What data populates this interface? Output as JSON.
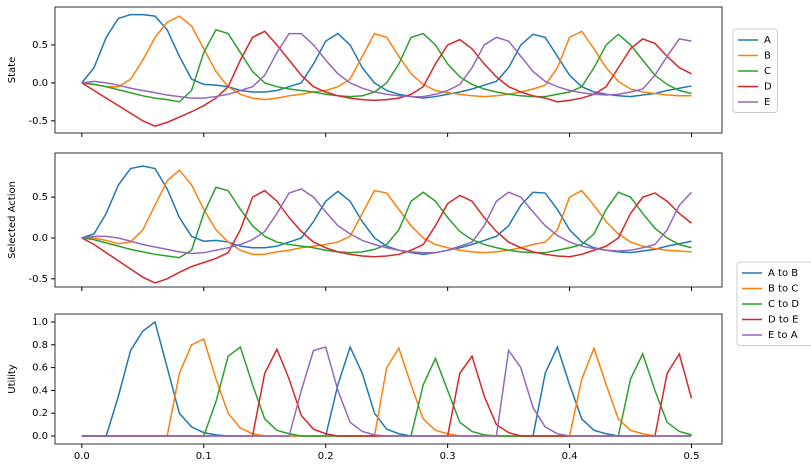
{
  "chart_data": [
    {
      "type": "line",
      "ylabel": "State",
      "x": [
        0,
        0.01,
        0.02,
        0.03,
        0.04,
        0.05,
        0.06,
        0.07,
        0.08,
        0.09,
        0.1,
        0.11,
        0.12,
        0.13,
        0.14,
        0.15,
        0.16,
        0.17,
        0.18,
        0.19,
        0.2,
        0.21,
        0.22,
        0.23,
        0.24,
        0.25,
        0.26,
        0.27,
        0.28,
        0.29,
        0.3,
        0.31,
        0.32,
        0.33,
        0.34,
        0.35,
        0.36,
        0.37,
        0.38,
        0.39,
        0.4,
        0.41,
        0.42,
        0.43,
        0.44,
        0.45,
        0.46,
        0.47,
        0.48,
        0.49,
        0.5
      ],
      "xlim": [
        -0.022,
        0.525
      ],
      "ylim": [
        -0.66,
        1.0
      ],
      "yticks": [
        0.5,
        {
          "value": 0,
          "label": "0.0"
        },
        -0.5
      ],
      "legend": "right",
      "series": [
        {
          "name": "A",
          "color": "#1f77b4",
          "values": [
            0,
            0.2,
            0.6,
            0.85,
            0.9,
            0.9,
            0.88,
            0.7,
            0.35,
            0.05,
            -0.02,
            -0.03,
            -0.05,
            -0.1,
            -0.12,
            -0.12,
            -0.1,
            -0.05,
            0.0,
            0.25,
            0.55,
            0.65,
            0.5,
            0.2,
            0.0,
            -0.1,
            -0.15,
            -0.18,
            -0.2,
            -0.18,
            -0.15,
            -0.12,
            -0.08,
            -0.03,
            0.02,
            0.2,
            0.5,
            0.64,
            0.6,
            0.35,
            0.1,
            -0.05,
            -0.12,
            -0.15,
            -0.17,
            -0.18,
            -0.16,
            -0.14,
            -0.1,
            -0.07,
            -0.04
          ]
        },
        {
          "name": "B",
          "color": "#ff7f0e",
          "values": [
            0,
            -0.02,
            -0.05,
            -0.05,
            0.05,
            0.3,
            0.6,
            0.8,
            0.88,
            0.75,
            0.45,
            0.15,
            -0.05,
            -0.15,
            -0.2,
            -0.22,
            -0.2,
            -0.17,
            -0.15,
            -0.12,
            -0.1,
            -0.05,
            0.05,
            0.35,
            0.65,
            0.6,
            0.35,
            0.12,
            -0.02,
            -0.1,
            -0.13,
            -0.15,
            -0.17,
            -0.18,
            -0.17,
            -0.15,
            -0.12,
            -0.08,
            -0.03,
            0.2,
            0.6,
            0.68,
            0.45,
            0.2,
            0.02,
            -0.08,
            -0.12,
            -0.14,
            -0.16,
            -0.17,
            -0.17
          ]
        },
        {
          "name": "C",
          "color": "#2ca02c",
          "values": [
            0,
            -0.02,
            -0.05,
            -0.09,
            -0.13,
            -0.17,
            -0.2,
            -0.22,
            -0.25,
            -0.1,
            0.4,
            0.7,
            0.65,
            0.4,
            0.15,
            0.0,
            -0.05,
            -0.08,
            -0.1,
            -0.12,
            -0.15,
            -0.17,
            -0.18,
            -0.17,
            -0.12,
            0.0,
            0.25,
            0.6,
            0.65,
            0.5,
            0.25,
            0.08,
            -0.02,
            -0.08,
            -0.12,
            -0.15,
            -0.17,
            -0.18,
            -0.18,
            -0.15,
            -0.12,
            -0.05,
            0.2,
            0.5,
            0.64,
            0.5,
            0.3,
            0.1,
            -0.02,
            -0.1,
            -0.14
          ]
        },
        {
          "name": "D",
          "color": "#d62728",
          "values": [
            0,
            -0.1,
            -0.2,
            -0.3,
            -0.4,
            -0.5,
            -0.57,
            -0.52,
            -0.45,
            -0.38,
            -0.3,
            -0.2,
            -0.05,
            0.3,
            0.6,
            0.68,
            0.5,
            0.3,
            0.1,
            -0.05,
            -0.12,
            -0.17,
            -0.2,
            -0.22,
            -0.23,
            -0.22,
            -0.2,
            -0.15,
            -0.05,
            0.25,
            0.5,
            0.57,
            0.45,
            0.25,
            0.08,
            -0.05,
            -0.12,
            -0.17,
            -0.2,
            -0.25,
            -0.23,
            -0.2,
            -0.15,
            -0.05,
            0.2,
            0.45,
            0.58,
            0.52,
            0.35,
            0.2,
            0.12
          ]
        },
        {
          "name": "E",
          "color": "#9467bd",
          "values": [
            0,
            0.02,
            0.0,
            -0.03,
            -0.07,
            -0.1,
            -0.13,
            -0.16,
            -0.18,
            -0.2,
            -0.2,
            -0.18,
            -0.15,
            -0.1,
            -0.05,
            0.1,
            0.4,
            0.65,
            0.65,
            0.5,
            0.3,
            0.12,
            0.0,
            -0.07,
            -0.12,
            -0.15,
            -0.17,
            -0.18,
            -0.18,
            -0.15,
            -0.1,
            -0.02,
            0.2,
            0.5,
            0.6,
            0.55,
            0.35,
            0.15,
            0.02,
            -0.05,
            -0.1,
            -0.13,
            -0.15,
            -0.16,
            -0.15,
            -0.12,
            -0.08,
            0.1,
            0.35,
            0.58,
            0.55
          ]
        }
      ]
    },
    {
      "type": "line",
      "ylabel": "Selected Action",
      "x": [
        0,
        0.01,
        0.02,
        0.03,
        0.04,
        0.05,
        0.06,
        0.07,
        0.08,
        0.09,
        0.1,
        0.11,
        0.12,
        0.13,
        0.14,
        0.15,
        0.16,
        0.17,
        0.18,
        0.19,
        0.2,
        0.21,
        0.22,
        0.23,
        0.24,
        0.25,
        0.26,
        0.27,
        0.28,
        0.29,
        0.3,
        0.31,
        0.32,
        0.33,
        0.34,
        0.35,
        0.36,
        0.37,
        0.38,
        0.39,
        0.4,
        0.41,
        0.42,
        0.43,
        0.44,
        0.45,
        0.46,
        0.47,
        0.48,
        0.49,
        0.5
      ],
      "xlim": [
        -0.022,
        0.525
      ],
      "ylim": [
        -0.6,
        1.04
      ],
      "yticks": [
        0.5,
        {
          "value": 0,
          "label": "0.0"
        },
        -0.5
      ],
      "series": [
        {
          "color": "#1f77b4",
          "values": [
            0,
            0.05,
            0.3,
            0.65,
            0.85,
            0.88,
            0.85,
            0.6,
            0.25,
            0.02,
            -0.04,
            -0.03,
            -0.05,
            -0.1,
            -0.12,
            -0.12,
            -0.1,
            -0.05,
            0.0,
            0.2,
            0.45,
            0.57,
            0.45,
            0.2,
            0.0,
            -0.1,
            -0.15,
            -0.18,
            -0.2,
            -0.18,
            -0.15,
            -0.12,
            -0.08,
            -0.03,
            0.02,
            0.15,
            0.4,
            0.56,
            0.55,
            0.35,
            0.1,
            -0.05,
            -0.12,
            -0.15,
            -0.17,
            -0.18,
            -0.16,
            -0.14,
            -0.1,
            -0.07,
            -0.04
          ]
        },
        {
          "color": "#ff7f0e",
          "values": [
            0,
            0,
            -0.03,
            -0.07,
            -0.05,
            0.1,
            0.4,
            0.7,
            0.83,
            0.65,
            0.35,
            0.1,
            -0.05,
            -0.15,
            -0.2,
            -0.2,
            -0.17,
            -0.15,
            -0.12,
            -0.1,
            -0.08,
            -0.05,
            0.02,
            0.3,
            0.58,
            0.55,
            0.35,
            0.15,
            0.0,
            -0.08,
            -0.12,
            -0.15,
            -0.17,
            -0.18,
            -0.17,
            -0.15,
            -0.12,
            -0.08,
            -0.05,
            0.1,
            0.5,
            0.58,
            0.4,
            0.2,
            0.05,
            -0.05,
            -0.1,
            -0.13,
            -0.15,
            -0.16,
            -0.17
          ]
        },
        {
          "color": "#2ca02c",
          "values": [
            0,
            -0.02,
            -0.06,
            -0.1,
            -0.14,
            -0.17,
            -0.2,
            -0.22,
            -0.24,
            -0.15,
            0.3,
            0.62,
            0.58,
            0.35,
            0.15,
            0.02,
            -0.05,
            -0.08,
            -0.1,
            -0.12,
            -0.15,
            -0.17,
            -0.18,
            -0.17,
            -0.14,
            -0.08,
            0.1,
            0.45,
            0.56,
            0.45,
            0.25,
            0.08,
            -0.02,
            -0.08,
            -0.12,
            -0.15,
            -0.17,
            -0.18,
            -0.18,
            -0.15,
            -0.12,
            -0.08,
            0.05,
            0.35,
            0.56,
            0.5,
            0.3,
            0.12,
            0.0,
            -0.08,
            -0.12
          ]
        },
        {
          "color": "#d62728",
          "values": [
            0,
            -0.08,
            -0.18,
            -0.28,
            -0.38,
            -0.48,
            -0.55,
            -0.5,
            -0.42,
            -0.35,
            -0.3,
            -0.25,
            -0.18,
            0.1,
            0.5,
            0.58,
            0.45,
            0.25,
            0.08,
            -0.05,
            -0.12,
            -0.17,
            -0.2,
            -0.22,
            -0.23,
            -0.22,
            -0.2,
            -0.15,
            -0.08,
            0.15,
            0.42,
            0.52,
            0.45,
            0.25,
            0.08,
            -0.05,
            -0.12,
            -0.17,
            -0.2,
            -0.22,
            -0.23,
            -0.2,
            -0.15,
            -0.1,
            0.0,
            0.3,
            0.5,
            0.55,
            0.45,
            0.3,
            0.18
          ]
        },
        {
          "color": "#9467bd",
          "values": [
            0,
            0.02,
            0.02,
            0.0,
            -0.04,
            -0.08,
            -0.11,
            -0.14,
            -0.17,
            -0.19,
            -0.18,
            -0.15,
            -0.12,
            -0.08,
            -0.02,
            0.08,
            0.3,
            0.55,
            0.6,
            0.5,
            0.32,
            0.15,
            0.05,
            -0.03,
            -0.08,
            -0.12,
            -0.15,
            -0.17,
            -0.18,
            -0.18,
            -0.15,
            -0.1,
            -0.05,
            0.15,
            0.45,
            0.56,
            0.5,
            0.32,
            0.15,
            0.03,
            -0.05,
            -0.1,
            -0.13,
            -0.15,
            -0.16,
            -0.15,
            -0.12,
            -0.08,
            0.1,
            0.4,
            0.56
          ]
        }
      ]
    },
    {
      "type": "line",
      "ylabel": "Utility",
      "x": [
        0,
        0.01,
        0.02,
        0.03,
        0.04,
        0.05,
        0.06,
        0.07,
        0.08,
        0.09,
        0.1,
        0.11,
        0.12,
        0.13,
        0.14,
        0.15,
        0.16,
        0.17,
        0.18,
        0.19,
        0.2,
        0.21,
        0.22,
        0.23,
        0.24,
        0.25,
        0.26,
        0.27,
        0.28,
        0.29,
        0.3,
        0.31,
        0.32,
        0.33,
        0.34,
        0.35,
        0.36,
        0.37,
        0.38,
        0.39,
        0.4,
        0.41,
        0.42,
        0.43,
        0.44,
        0.45,
        0.46,
        0.47,
        0.48,
        0.49,
        0.5
      ],
      "xlim": [
        -0.022,
        0.525
      ],
      "ylim": [
        -0.07,
        1.07
      ],
      "xticks": [
        {
          "value": 0,
          "label": "0.0"
        },
        0.1,
        0.2,
        0.3,
        0.4,
        0.5
      ],
      "yticks": [
        {
          "value": 0,
          "label": "0.0"
        },
        0.2,
        0.4,
        0.6,
        0.8,
        {
          "value": 1,
          "label": "1.0"
        }
      ],
      "legend": "right",
      "series": [
        {
          "name": "A to B",
          "color": "#1f77b4",
          "values": [
            0,
            0,
            0,
            0.35,
            0.75,
            0.92,
            1.0,
            0.6,
            0.2,
            0.08,
            0.03,
            0.01,
            0,
            0,
            0,
            0,
            0,
            0,
            0,
            0,
            0,
            0.45,
            0.78,
            0.55,
            0.2,
            0.06,
            0.02,
            0,
            0,
            0,
            0,
            0,
            0,
            0,
            0,
            0,
            0,
            0,
            0.55,
            0.78,
            0.45,
            0.15,
            0.05,
            0.02,
            0,
            0,
            0,
            0,
            0,
            0,
            0
          ]
        },
        {
          "name": "B to C",
          "color": "#ff7f0e",
          "values": [
            0,
            0,
            0,
            0,
            0,
            0,
            0,
            0,
            0.55,
            0.8,
            0.85,
            0.5,
            0.2,
            0.07,
            0.02,
            0,
            0,
            0,
            0,
            0,
            0,
            0,
            0,
            0,
            0,
            0.6,
            0.77,
            0.45,
            0.15,
            0.05,
            0.02,
            0,
            0,
            0,
            0,
            0,
            0,
            0,
            0,
            0,
            0,
            0.5,
            0.77,
            0.45,
            0.15,
            0.05,
            0.02,
            0,
            0,
            0,
            0
          ]
        },
        {
          "name": "C to D",
          "color": "#2ca02c",
          "values": [
            0,
            0,
            0,
            0,
            0,
            0,
            0,
            0,
            0,
            0,
            0,
            0.3,
            0.7,
            0.78,
            0.45,
            0.15,
            0.05,
            0.02,
            0,
            0,
            0,
            0,
            0,
            0,
            0,
            0,
            0,
            0,
            0.45,
            0.68,
            0.4,
            0.12,
            0.04,
            0.01,
            0,
            0,
            0,
            0,
            0,
            0,
            0,
            0,
            0,
            0,
            0,
            0.5,
            0.72,
            0.4,
            0.12,
            0.04,
            0.01
          ]
        },
        {
          "name": "D to E",
          "color": "#d62728",
          "values": [
            0,
            0,
            0,
            0,
            0,
            0,
            0,
            0,
            0,
            0,
            0,
            0,
            0,
            0,
            0,
            0.55,
            0.76,
            0.5,
            0.18,
            0.06,
            0.02,
            0,
            0,
            0,
            0,
            0,
            0,
            0,
            0,
            0,
            0,
            0.55,
            0.7,
            0.35,
            0.1,
            0.03,
            0,
            0,
            0,
            0,
            0,
            0,
            0,
            0,
            0,
            0,
            0,
            0,
            0.55,
            0.72,
            0.33
          ]
        },
        {
          "name": "E to A",
          "color": "#9467bd",
          "values": [
            0,
            0,
            0,
            0,
            0,
            0,
            0,
            0,
            0,
            0,
            0,
            0,
            0,
            0,
            0,
            0,
            0,
            0,
            0.4,
            0.75,
            0.78,
            0.4,
            0.12,
            0.04,
            0.01,
            0,
            0,
            0,
            0,
            0,
            0,
            0,
            0,
            0,
            0,
            0.75,
            0.6,
            0.25,
            0.08,
            0.02,
            0,
            0,
            0,
            0,
            0,
            0,
            0,
            0,
            0,
            0,
            0
          ]
        }
      ]
    }
  ]
}
